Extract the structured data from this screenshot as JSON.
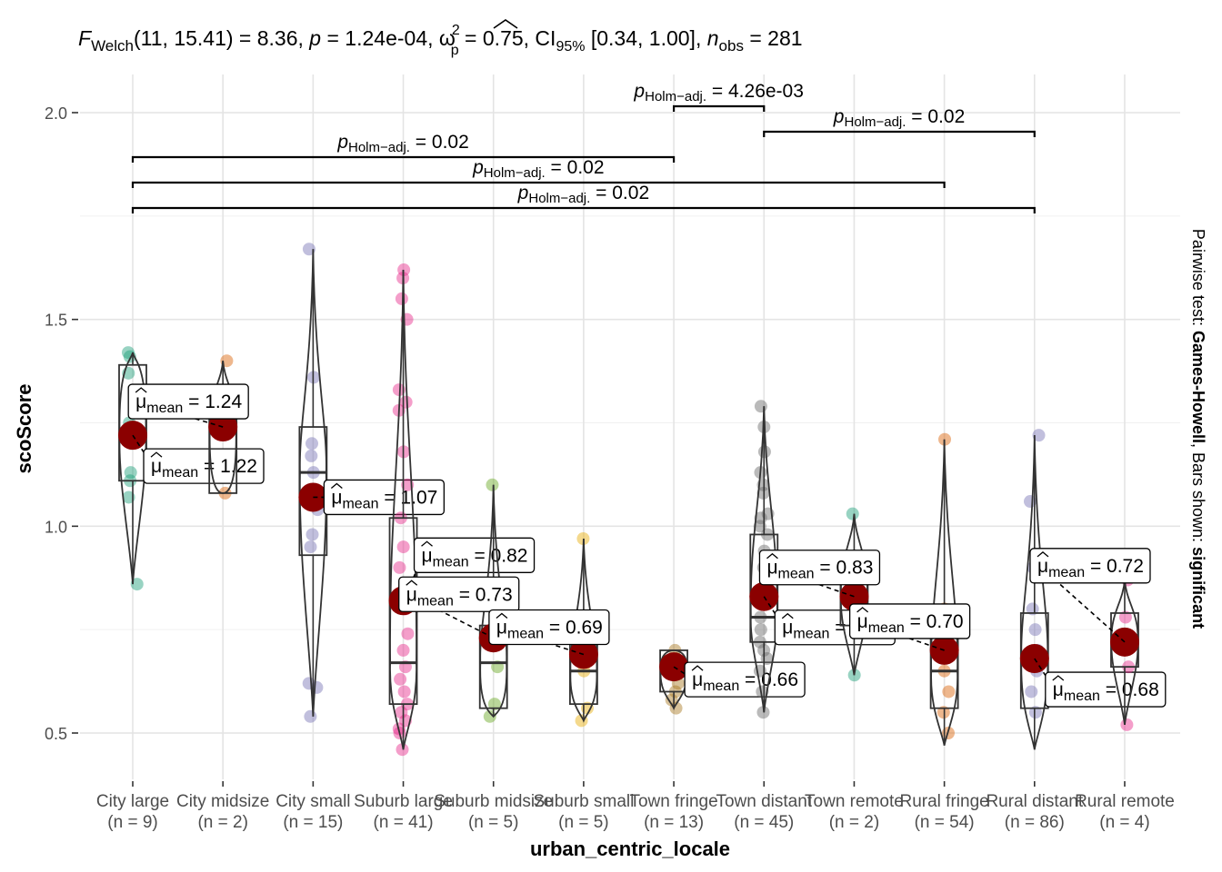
{
  "chart_data": {
    "type": "violin-box-scatter",
    "title": {
      "F_label": "F",
      "F_sub": "Welch",
      "F_args": "(11, 15.41)",
      "F_value": " = 8.36, ",
      "p_label": "p",
      "p_value": " = 1.24e-04, ",
      "omega_label": "ω",
      "omega_sup": "2",
      "omega_sub": "p",
      "omega_value": " = 0.75, CI",
      "ci_sub": "95%",
      "ci_value": " [0.34, 1.00], ",
      "n_label": "n",
      "n_sub": "obs",
      "n_value": " = 281"
    },
    "xlabel": "urban_centric_locale",
    "ylabel": "scoScore",
    "ylim": [
      0.38,
      2.1
    ],
    "y_ticks": [
      0.5,
      1.0,
      1.5,
      2.0
    ],
    "y_tick_labels": [
      "0.5",
      "1.0",
      "1.5",
      "2.0"
    ],
    "grid": true,
    "categories": [
      "City large",
      "City midsize",
      "City small",
      "Suburb large",
      "Suburb midsize",
      "Suburb small",
      "Town fringe",
      "Town distant",
      "Town remote",
      "Rural fringe",
      "Rural distant",
      "Rural remote"
    ],
    "n_labels": [
      "(n = 9)",
      "(n = 2)",
      "(n = 15)",
      "(n = 41)",
      "(n = 5)",
      "(n = 5)",
      "(n = 13)",
      "(n = 45)",
      "(n = 2)",
      "(n = 54)",
      "(n = 86)",
      "(n = 4)"
    ],
    "colors": [
      "#1B9E77",
      "#D95F02",
      "#7570B3",
      "#E7298A",
      "#66A61E",
      "#E6AB02",
      "#A6761D",
      "#666666",
      "#1B9E77",
      "#D95F02",
      "#7570B3",
      "#E7298A"
    ],
    "mean_color": "#8B0000",
    "means": [
      1.22,
      1.24,
      1.07,
      0.82,
      0.73,
      0.69,
      0.66,
      0.83,
      0.83,
      0.7,
      0.68,
      0.72
    ],
    "mean_label_prefix": "μ",
    "mean_label_sub": "mean",
    "mean_label_texts": [
      " = 1.22",
      " = 1.24",
      " = 1.07",
      " = 0.82",
      " = 0.73",
      " = 0.69",
      " = 0.66",
      " = 0.83",
      " = 0.83",
      " = 0.70",
      " = 0.68",
      " = 0.72"
    ],
    "boxes": [
      {
        "q1": 1.11,
        "median": 1.22,
        "q3": 1.39,
        "lo": 0.86,
        "hi": 1.42
      },
      {
        "q1": 1.08,
        "median": 1.24,
        "q3": 1.32,
        "lo": 1.08,
        "hi": 1.4
      },
      {
        "q1": 0.93,
        "median": 1.13,
        "q3": 1.24,
        "lo": 0.54,
        "hi": 1.67
      },
      {
        "q1": 0.57,
        "median": 0.67,
        "q3": 1.02,
        "lo": 0.46,
        "hi": 1.62
      },
      {
        "q1": 0.56,
        "median": 0.67,
        "q3": 0.76,
        "lo": 0.54,
        "hi": 1.1
      },
      {
        "q1": 0.57,
        "median": 0.65,
        "q3": 0.73,
        "lo": 0.53,
        "hi": 0.97
      },
      {
        "q1": 0.6,
        "median": 0.65,
        "q3": 0.7,
        "lo": 0.56,
        "hi": 0.7
      },
      {
        "q1": 0.72,
        "median": 0.78,
        "q3": 0.98,
        "lo": 0.55,
        "hi": 1.29
      },
      {
        "q1": 0.76,
        "median": 0.83,
        "q3": 0.93,
        "lo": 0.64,
        "hi": 1.03
      },
      {
        "q1": 0.56,
        "median": 0.65,
        "q3": 0.81,
        "lo": 0.47,
        "hi": 1.21
      },
      {
        "q1": 0.56,
        "median": 0.68,
        "q3": 0.79,
        "lo": 0.46,
        "hi": 1.22
      },
      {
        "q1": 0.66,
        "median": 0.72,
        "q3": 0.79,
        "lo": 0.52,
        "hi": 0.87
      }
    ],
    "points": [
      [
        1.42,
        1.41,
        1.37,
        1.13,
        1.11,
        1.07,
        0.86,
        1.25,
        1.2
      ],
      [
        1.4,
        1.08
      ],
      [
        1.67,
        1.36,
        1.2,
        1.17,
        1.13,
        1.08,
        0.62,
        0.61,
        0.54,
        0.98,
        1.04,
        0.95
      ],
      [
        1.62,
        1.6,
        1.55,
        1.5,
        1.33,
        1.3,
        1.28,
        1.18,
        1.02,
        0.95,
        0.83,
        0.8,
        0.74,
        0.7,
        0.66,
        0.63,
        0.6,
        0.57,
        0.55,
        0.53,
        0.51,
        0.5,
        0.46,
        1.1,
        0.9
      ],
      [
        1.1,
        0.73,
        0.66,
        0.57,
        0.54
      ],
      [
        0.97,
        0.69,
        0.65,
        0.56,
        0.53
      ],
      [
        0.7,
        0.68,
        0.66,
        0.65,
        0.62,
        0.6,
        0.58,
        0.56
      ],
      [
        1.29,
        1.24,
        1.18,
        1.13,
        1.08,
        1.03,
        1.02,
        1.0,
        0.98,
        0.94,
        0.9,
        0.86,
        0.82,
        0.78,
        0.75,
        0.72,
        0.7,
        0.68,
        0.65,
        0.6,
        0.55,
        1.1
      ],
      [
        1.03,
        0.64
      ],
      [
        1.21,
        0.8,
        0.75,
        0.7,
        0.65,
        0.6,
        0.55,
        0.5
      ],
      [
        1.22,
        1.06,
        0.9,
        0.8,
        0.75,
        0.7,
        0.65,
        0.6,
        0.55
      ],
      [
        0.87,
        0.78,
        0.66,
        0.52
      ]
    ],
    "comparisons": [
      {
        "from": 6,
        "to": 7,
        "label_prefix": "p",
        "label_sub": "Holm−adj.",
        "label_value": " = 4.26e-03"
      },
      {
        "from": 7,
        "to": 10,
        "label_prefix": "p",
        "label_sub": "Holm−adj.",
        "label_value": " = 0.02"
      },
      {
        "from": 0,
        "to": 6,
        "label_prefix": "p",
        "label_sub": "Holm−adj.",
        "label_value": " = 0.02"
      },
      {
        "from": 0,
        "to": 9,
        "label_prefix": "p",
        "label_sub": "Holm−adj.",
        "label_value": " = 0.02"
      },
      {
        "from": 0,
        "to": 10,
        "label_prefix": "p",
        "label_sub": "Holm−adj.",
        "label_value": " = 0.02"
      }
    ],
    "right_caption_plain": "Pairwise test: ",
    "right_caption_bold1": "Games-Howell",
    "right_caption_mid": ", Bars shown: ",
    "right_caption_bold2": "significant"
  }
}
